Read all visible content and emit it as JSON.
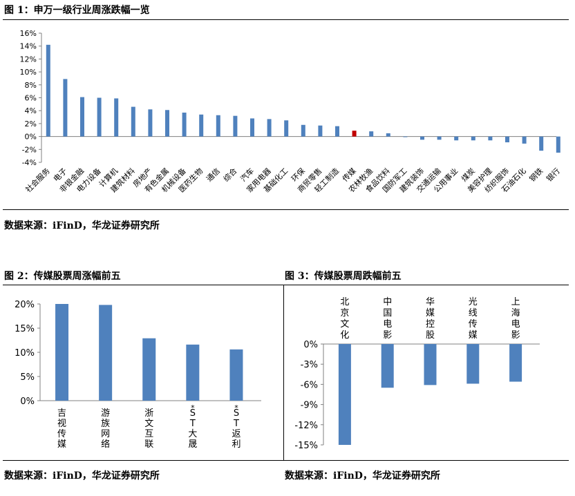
{
  "fig1": {
    "title": "图 1：申万一级行业周涨跌幅一览",
    "source": "数据来源：iFinD，华龙证券研究所"
  },
  "fig2": {
    "title": "图 2：传媒股票周涨幅前五",
    "source": "数据来源：iFinD，华龙证券研究所"
  },
  "fig3": {
    "title": "图 3：传媒股票周跌幅前五",
    "source": "数据来源：iFinD，华龙证券研究所"
  },
  "colors": {
    "bar": "#4f81bd",
    "highlight": "#c00000",
    "axis": "#808080"
  },
  "chart_data": [
    {
      "type": "bar",
      "title": "",
      "categories": [
        "社会服务",
        "电子",
        "非银金融",
        "电力设备",
        "计算机",
        "建筑材料",
        "房地产",
        "有色金属",
        "机械设备",
        "医药生物",
        "通信",
        "综合",
        "汽车",
        "家用电器",
        "基础化工",
        "环保",
        "商贸零售",
        "轻工制造",
        "传媒",
        "农林牧渔",
        "食品饮料",
        "国防军工",
        "建筑装饰",
        "交通运输",
        "公用事业",
        "煤炭",
        "美容护理",
        "纺织服饰",
        "石油石化",
        "钢铁",
        "银行"
      ],
      "values": [
        14.2,
        8.9,
        6.1,
        6.0,
        5.9,
        4.6,
        4.2,
        4.1,
        3.7,
        3.4,
        3.3,
        3.2,
        2.8,
        2.7,
        2.5,
        1.8,
        1.7,
        1.6,
        0.9,
        0.8,
        0.5,
        -0.1,
        -0.5,
        -0.5,
        -0.6,
        -0.6,
        -0.6,
        -0.9,
        -1.1,
        -2.2,
        -2.5
      ],
      "highlight": "传媒",
      "yticks": [
        "16%",
        "14%",
        "12%",
        "10%",
        "8%",
        "6%",
        "4%",
        "2%",
        "0%",
        "-2%",
        "-4%"
      ],
      "ylim": [
        -4,
        16
      ]
    },
    {
      "type": "bar",
      "title": "",
      "categories": [
        "吉视传媒",
        "游族网络",
        "浙文互联",
        "*ST大晟",
        "*ST返利"
      ],
      "values": [
        20.0,
        19.8,
        12.9,
        11.6,
        10.6
      ],
      "yticks": [
        "20%",
        "15%",
        "10%",
        "5%",
        "0%"
      ],
      "ylim": [
        0,
        20
      ]
    },
    {
      "type": "bar",
      "title": "",
      "categories": [
        "北京文化",
        "中国电影",
        "华媒控股",
        "光线传媒",
        "上海电影"
      ],
      "values": [
        -15.0,
        -6.5,
        -6.1,
        -5.9,
        -5.6
      ],
      "yticks": [
        "0%",
        "-3%",
        "-6%",
        "-9%",
        "-12%",
        "-15%"
      ],
      "ylim": [
        -15,
        0
      ]
    }
  ]
}
